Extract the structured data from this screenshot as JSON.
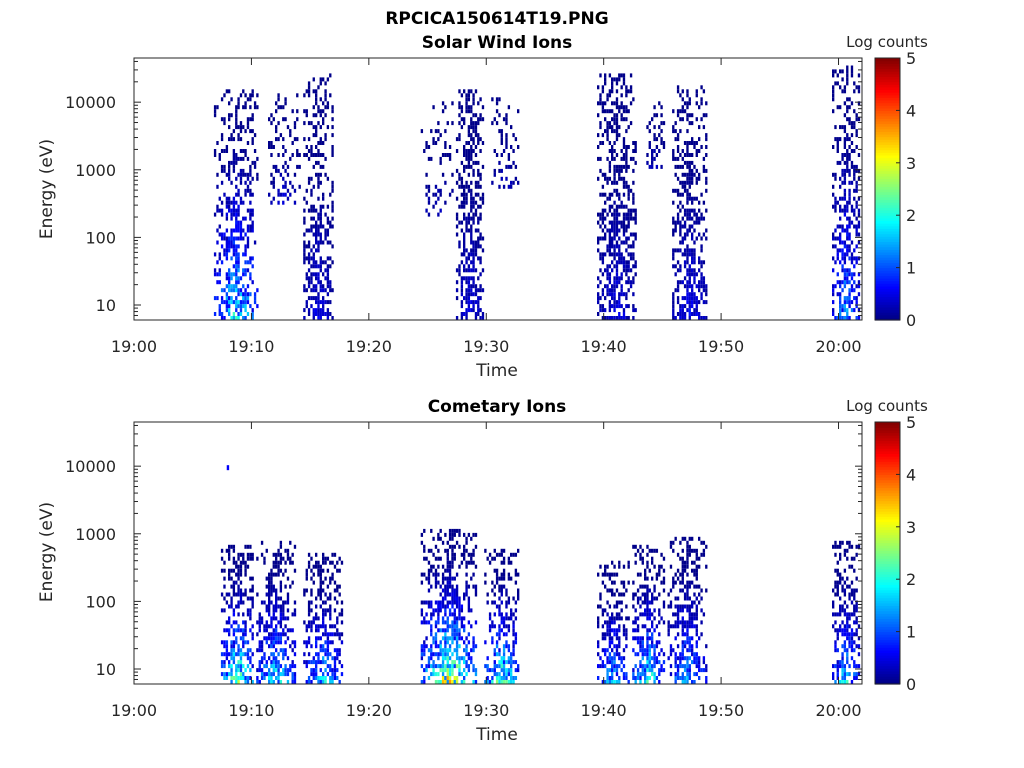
{
  "page_title": "RPCICA150614T19.PNG",
  "chart_data": [
    {
      "type": "heatmap",
      "title": "Solar Wind Ions",
      "xlabel": "Time",
      "ylabel": "Energy (eV)",
      "xlim": [
        "19:00",
        "20:02"
      ],
      "x_ticks": [
        "19:00",
        "19:10",
        "19:20",
        "19:30",
        "19:40",
        "19:50",
        "20:00"
      ],
      "ylim": [
        6,
        45000
      ],
      "y_scale": "log",
      "y_ticks": [
        "10",
        "100",
        "1000",
        "10000"
      ],
      "colorbar": {
        "label": "Log counts",
        "min": 0,
        "max": 5,
        "ticks": [
          "0",
          "1",
          "2",
          "3",
          "4",
          "5"
        ],
        "colormap": "jet"
      },
      "blocks": [
        {
          "t_start": "19:07:00",
          "t_end": "19:10:20",
          "e_min": 6,
          "e_max": 15000,
          "peak_log": 2.2,
          "density": 0.45
        },
        {
          "t_start": "19:11:30",
          "t_end": "19:14:00",
          "e_min": 300,
          "e_max": 13000,
          "peak_log": 0.5,
          "density": 0.25
        },
        {
          "t_start": "19:14:30",
          "t_end": "19:16:40",
          "e_min": 6,
          "e_max": 25000,
          "peak_log": 0.6,
          "density": 0.45
        },
        {
          "t_start": "19:24:30",
          "t_end": "19:27:00",
          "e_min": 200,
          "e_max": 10000,
          "peak_log": 0.4,
          "density": 0.2
        },
        {
          "t_start": "19:27:30",
          "t_end": "19:29:30",
          "e_min": 6,
          "e_max": 15000,
          "peak_log": 0.6,
          "density": 0.5
        },
        {
          "t_start": "19:30:30",
          "t_end": "19:32:30",
          "e_min": 500,
          "e_max": 12000,
          "peak_log": 0.4,
          "density": 0.25
        },
        {
          "t_start": "19:39:30",
          "t_end": "19:42:30",
          "e_min": 6,
          "e_max": 25000,
          "peak_log": 0.6,
          "density": 0.5
        },
        {
          "t_start": "19:43:30",
          "t_end": "19:45:00",
          "e_min": 1000,
          "e_max": 11000,
          "peak_log": 0.4,
          "density": 0.25
        },
        {
          "t_start": "19:46:00",
          "t_end": "19:48:30",
          "e_min": 6,
          "e_max": 18000,
          "peak_log": 0.7,
          "density": 0.5
        },
        {
          "t_start": "19:59:30",
          "t_end": "20:01:30",
          "e_min": 6,
          "e_max": 35000,
          "peak_log": 1.6,
          "density": 0.45
        }
      ]
    },
    {
      "type": "heatmap",
      "title": "Cometary Ions",
      "xlabel": "Time",
      "ylabel": "Energy (eV)",
      "xlim": [
        "19:00",
        "20:02"
      ],
      "x_ticks": [
        "19:00",
        "19:10",
        "19:20",
        "19:30",
        "19:40",
        "19:50",
        "20:00"
      ],
      "ylim": [
        6,
        45000
      ],
      "y_scale": "log",
      "y_ticks": [
        "10",
        "100",
        "1000",
        "10000"
      ],
      "colorbar": {
        "label": "Log counts",
        "min": 0,
        "max": 5,
        "ticks": [
          "0",
          "1",
          "2",
          "3",
          "4",
          "5"
        ],
        "colormap": "jet"
      },
      "blocks": [
        {
          "t_start": "19:07:30",
          "t_end": "19:10:00",
          "e_min": 6,
          "e_max": 700,
          "peak_log": 3.0,
          "density": 0.55
        },
        {
          "t_start": "19:10:30",
          "t_end": "19:13:30",
          "e_min": 6,
          "e_max": 800,
          "peak_log": 2.2,
          "density": 0.5
        },
        {
          "t_start": "19:14:30",
          "t_end": "19:17:30",
          "e_min": 6,
          "e_max": 500,
          "peak_log": 2.0,
          "density": 0.5
        },
        {
          "t_start": "19:24:30",
          "t_end": "19:29:00",
          "e_min": 6,
          "e_max": 1200,
          "peak_log": 3.4,
          "density": 0.55
        },
        {
          "t_start": "19:30:00",
          "t_end": "19:32:30",
          "e_min": 6,
          "e_max": 600,
          "peak_log": 2.6,
          "density": 0.5
        },
        {
          "t_start": "19:39:30",
          "t_end": "19:42:00",
          "e_min": 6,
          "e_max": 400,
          "peak_log": 1.8,
          "density": 0.45
        },
        {
          "t_start": "19:42:30",
          "t_end": "19:45:00",
          "e_min": 6,
          "e_max": 700,
          "peak_log": 2.4,
          "density": 0.5
        },
        {
          "t_start": "19:45:30",
          "t_end": "19:48:30",
          "e_min": 6,
          "e_max": 900,
          "peak_log": 1.8,
          "density": 0.5
        },
        {
          "t_start": "19:59:30",
          "t_end": "20:01:30",
          "e_min": 6,
          "e_max": 800,
          "peak_log": 2.0,
          "density": 0.45
        }
      ],
      "isolated": [
        {
          "time": "19:08:00",
          "energy": 9500,
          "log": 0.6
        }
      ]
    }
  ]
}
